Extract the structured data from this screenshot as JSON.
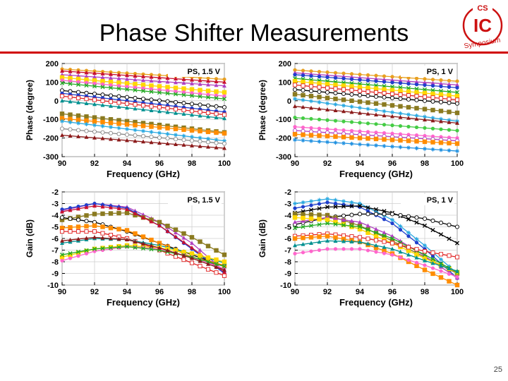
{
  "slide": {
    "title": "Phase Shifter Measurements",
    "page_number": "25",
    "logo": {
      "text_top": "CS",
      "text_center": "IC",
      "text_ring": "Symposium",
      "color": "#cc1111"
    },
    "accent_color": "#d00000"
  },
  "chart_data": [
    {
      "type": "line",
      "annotation": "PS, 1.5 V",
      "xlabel": "Frequency (GHz)",
      "ylabel": "Phase (degree)",
      "xlim": [
        90,
        100
      ],
      "ylim": [
        -300,
        200
      ],
      "xticks": [
        "90",
        "92",
        "94",
        "96",
        "98",
        "100"
      ],
      "yticks": [
        "200",
        "100",
        "0",
        "-100",
        "-200",
        "-300"
      ],
      "grid": true,
      "x": [
        90,
        100
      ],
      "series": [
        {
          "color": "#e8a020",
          "marker": "circle",
          "values": [
            170,
            115
          ]
        },
        {
          "color": "#c8102e",
          "marker": "triangle",
          "values": [
            160,
            100
          ]
        },
        {
          "color": "#b040c0",
          "marker": "triangle",
          "values": [
            140,
            80
          ]
        },
        {
          "color": "#ffd700",
          "marker": "square",
          "values": [
            125,
            45
          ]
        },
        {
          "color": "#ff66cc",
          "marker": "circle",
          "values": [
            110,
            25
          ]
        },
        {
          "color": "#22aa22",
          "marker": "x",
          "values": [
            95,
            10
          ]
        },
        {
          "color": "#000000",
          "marker": "open-circle",
          "values": [
            55,
            -35
          ]
        },
        {
          "color": "#1f3fcc",
          "marker": "circle",
          "values": [
            40,
            -60
          ]
        },
        {
          "color": "#e02020",
          "marker": "open-square",
          "values": [
            25,
            -75
          ]
        },
        {
          "color": "#009090",
          "marker": "triangle",
          "values": [
            0,
            -95
          ]
        },
        {
          "color": "#8a7a20",
          "marker": "square",
          "values": [
            -70,
            -170
          ]
        },
        {
          "color": "#ff8c00",
          "marker": "square",
          "values": [
            -95,
            -175
          ]
        },
        {
          "color": "#29a8e0",
          "marker": "star",
          "values": [
            -110,
            -215
          ]
        },
        {
          "color": "#888888",
          "marker": "open-circle",
          "values": [
            -150,
            -230
          ]
        },
        {
          "color": "#8b1a1a",
          "marker": "triangle",
          "values": [
            -185,
            -255
          ]
        }
      ]
    },
    {
      "type": "line",
      "annotation": "PS, 1 V",
      "xlabel": "Frequency (GHz)",
      "ylabel": "Phase (degree)",
      "xlim": [
        90,
        100
      ],
      "ylim": [
        -300,
        200
      ],
      "xticks": [
        "90",
        "92",
        "94",
        "96",
        "98",
        "100"
      ],
      "yticks": [
        "200",
        "100",
        "0",
        "-100",
        "-200",
        "-300"
      ],
      "grid": true,
      "x": [
        90,
        100
      ],
      "series": [
        {
          "color": "#e8a020",
          "marker": "circle",
          "values": [
            165,
            105
          ]
        },
        {
          "color": "#b040c0",
          "marker": "triangle",
          "values": [
            150,
            85
          ]
        },
        {
          "color": "#1f3fcc",
          "marker": "circle",
          "values": [
            140,
            70
          ]
        },
        {
          "color": "#22aa22",
          "marker": "x",
          "values": [
            120,
            45
          ]
        },
        {
          "color": "#ffd700",
          "marker": "square",
          "values": [
            105,
            25
          ]
        },
        {
          "color": "#e02020",
          "marker": "open-square",
          "values": [
            85,
            5
          ]
        },
        {
          "color": "#000000",
          "marker": "open-circle",
          "values": [
            60,
            -15
          ]
        },
        {
          "color": "#8a7a20",
          "marker": "square",
          "values": [
            35,
            -65
          ]
        },
        {
          "color": "#29a8e0",
          "marker": "star",
          "values": [
            10,
            -110
          ]
        },
        {
          "color": "#8b1a1a",
          "marker": "triangle",
          "values": [
            -30,
            -120
          ]
        },
        {
          "color": "#44cc44",
          "marker": "circle",
          "values": [
            -90,
            -160
          ]
        },
        {
          "color": "#ff66cc",
          "marker": "circle",
          "values": [
            -140,
            -200
          ]
        },
        {
          "color": "#b040c0",
          "marker": "open-circle",
          "values": [
            -160,
            -215
          ]
        },
        {
          "color": "#ff8c00",
          "marker": "square",
          "values": [
            -180,
            -230
          ]
        },
        {
          "color": "#1f90e0",
          "marker": "star",
          "values": [
            -210,
            -270
          ]
        }
      ]
    },
    {
      "type": "line",
      "annotation": "PS, 1.5 V",
      "xlabel": "Frequency (GHz)",
      "ylabel": "Gain (dB)",
      "xlim": [
        90,
        100
      ],
      "ylim": [
        -10,
        -2
      ],
      "xticks": [
        "90",
        "92",
        "94",
        "96",
        "98",
        "100"
      ],
      "yticks": [
        "-2",
        "-3",
        "-4",
        "-5",
        "-6",
        "-7",
        "-8",
        "-9",
        "-10"
      ],
      "grid": true,
      "x": [
        90,
        92,
        94,
        96,
        98,
        100
      ],
      "series": [
        {
          "color": "#b040c0",
          "marker": "triangle",
          "values": [
            -3.6,
            -3.0,
            -3.3,
            -4.6,
            -6.4,
            -8.8
          ]
        },
        {
          "color": "#1f3fcc",
          "marker": "circle",
          "values": [
            -3.5,
            -3.0,
            -3.4,
            -4.9,
            -6.9,
            -9.0
          ]
        },
        {
          "color": "#8a7a20",
          "marker": "square",
          "values": [
            -4.4,
            -3.9,
            -3.8,
            -4.6,
            -5.9,
            -7.4
          ]
        },
        {
          "color": "#c8102e",
          "marker": "triangle",
          "values": [
            -3.7,
            -3.2,
            -3.5,
            -4.9,
            -6.8,
            -8.9
          ]
        },
        {
          "color": "#000000",
          "marker": "open-circle",
          "values": [
            -4.2,
            -4.6,
            -5.4,
            -6.4,
            -7.4,
            -8.4
          ]
        },
        {
          "color": "#ff8c00",
          "marker": "square",
          "values": [
            -5.1,
            -4.9,
            -5.3,
            -6.4,
            -7.6,
            -8.3
          ]
        },
        {
          "color": "#e02020",
          "marker": "open-square",
          "values": [
            -5.4,
            -5.4,
            -6.0,
            -7.0,
            -8.1,
            -9.2
          ]
        },
        {
          "color": "#009090",
          "marker": "triangle",
          "values": [
            -6.4,
            -6.0,
            -6.1,
            -6.6,
            -7.3,
            -8.1
          ]
        },
        {
          "color": "#ffd700",
          "marker": "square",
          "values": [
            -7.6,
            -6.9,
            -6.6,
            -6.8,
            -7.3,
            -8.0
          ]
        },
        {
          "color": "#ff66cc",
          "marker": "circle",
          "values": [
            -7.9,
            -7.1,
            -6.7,
            -6.9,
            -7.6,
            -8.6
          ]
        },
        {
          "color": "#22aa22",
          "marker": "x",
          "values": [
            -7.4,
            -6.9,
            -6.7,
            -7.0,
            -7.6,
            -8.4
          ]
        },
        {
          "color": "#8b1a1a",
          "marker": "triangle",
          "values": [
            -6.2,
            -5.9,
            -6.1,
            -6.8,
            -7.7,
            -8.7
          ]
        }
      ]
    },
    {
      "type": "line",
      "annotation": "PS, 1 V",
      "xlabel": "Frequency (GHz)",
      "ylabel": "Gain (dB)",
      "xlim": [
        90,
        100
      ],
      "ylim": [
        -10,
        -2
      ],
      "xticks": [
        "90",
        "92",
        "94",
        "96",
        "98",
        "100"
      ],
      "yticks": [
        "-2",
        "-3",
        "-4",
        "-5",
        "-6",
        "-7",
        "-8",
        "-9",
        "-10"
      ],
      "grid": true,
      "x": [
        90,
        92,
        94,
        96,
        98,
        100
      ],
      "series": [
        {
          "color": "#29a8e0",
          "marker": "star",
          "values": [
            -3.0,
            -2.6,
            -3.0,
            -4.4,
            -6.6,
            -9.0
          ]
        },
        {
          "color": "#1f3fcc",
          "marker": "circle",
          "values": [
            -3.4,
            -2.9,
            -3.3,
            -4.7,
            -6.9,
            -9.4
          ]
        },
        {
          "color": "#000000",
          "marker": "x",
          "values": [
            -3.8,
            -3.3,
            -3.2,
            -3.8,
            -4.9,
            -6.4
          ]
        },
        {
          "color": "#000000",
          "marker": "open-circle",
          "values": [
            -4.8,
            -4.2,
            -3.9,
            -3.9,
            -4.3,
            -5.0
          ]
        },
        {
          "color": "#8a7a20",
          "marker": "square",
          "values": [
            -3.9,
            -4.0,
            -4.9,
            -6.2,
            -7.6,
            -9.0
          ]
        },
        {
          "color": "#b040c0",
          "marker": "triangle",
          "values": [
            -4.6,
            -4.2,
            -4.6,
            -5.8,
            -7.5,
            -9.4
          ]
        },
        {
          "color": "#ffd700",
          "marker": "square",
          "values": [
            -4.2,
            -4.4,
            -5.2,
            -6.4,
            -7.7,
            -8.9
          ]
        },
        {
          "color": "#22aa22",
          "marker": "x",
          "values": [
            -5.1,
            -4.7,
            -5.0,
            -6.0,
            -7.4,
            -8.9
          ]
        },
        {
          "color": "#e02020",
          "marker": "open-square",
          "values": [
            -5.8,
            -5.6,
            -5.9,
            -6.4,
            -7.1,
            -7.6
          ]
        },
        {
          "color": "#ff8c00",
          "marker": "square",
          "values": [
            -6.0,
            -5.8,
            -6.3,
            -7.3,
            -8.7,
            -10.0
          ]
        },
        {
          "color": "#ff66cc",
          "marker": "circle",
          "values": [
            -7.3,
            -6.9,
            -6.9,
            -7.4,
            -8.3,
            -9.3
          ]
        },
        {
          "color": "#009090",
          "marker": "triangle",
          "values": [
            -6.6,
            -6.2,
            -6.3,
            -6.9,
            -7.9,
            -8.8
          ]
        }
      ]
    }
  ]
}
